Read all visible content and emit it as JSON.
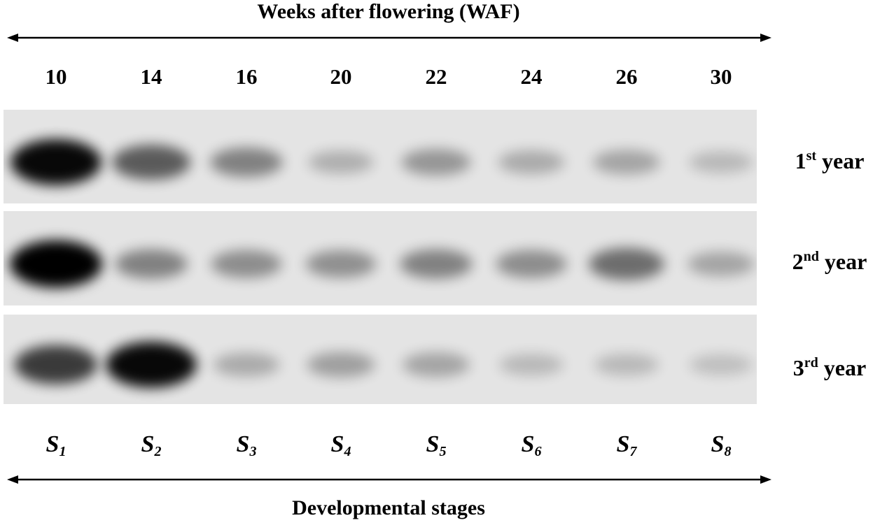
{
  "header": {
    "title": "Weeks after flowering (WAF)"
  },
  "footer": {
    "title": "Developmental stages"
  },
  "weeks": [
    "10",
    "14",
    "16",
    "20",
    "22",
    "24",
    "26",
    "30"
  ],
  "stages": [
    {
      "letter": "S",
      "sub": "1"
    },
    {
      "letter": "S",
      "sub": "2"
    },
    {
      "letter": "S",
      "sub": "3"
    },
    {
      "letter": "S",
      "sub": "4"
    },
    {
      "letter": "S",
      "sub": "5"
    },
    {
      "letter": "S",
      "sub": "6"
    },
    {
      "letter": "S",
      "sub": "7"
    },
    {
      "letter": "S",
      "sub": "8"
    }
  ],
  "rows": [
    {
      "num": "1",
      "sup": "st",
      "word": " year",
      "band_darkness": [
        0.95,
        0.55,
        0.35,
        0.12,
        0.25,
        0.15,
        0.18,
        0.08
      ]
    },
    {
      "num": "2",
      "sup": "nd",
      "word": " year",
      "band_darkness": [
        1.0,
        0.35,
        0.3,
        0.28,
        0.35,
        0.3,
        0.45,
        0.18
      ]
    },
    {
      "num": "3",
      "sup": "rd",
      "word": " year",
      "band_darkness": [
        0.7,
        0.95,
        0.15,
        0.2,
        0.18,
        0.08,
        0.08,
        0.05
      ]
    }
  ],
  "colors": {
    "membrane": "#e4e4e4",
    "band": "#000000",
    "ink": "#000000"
  }
}
